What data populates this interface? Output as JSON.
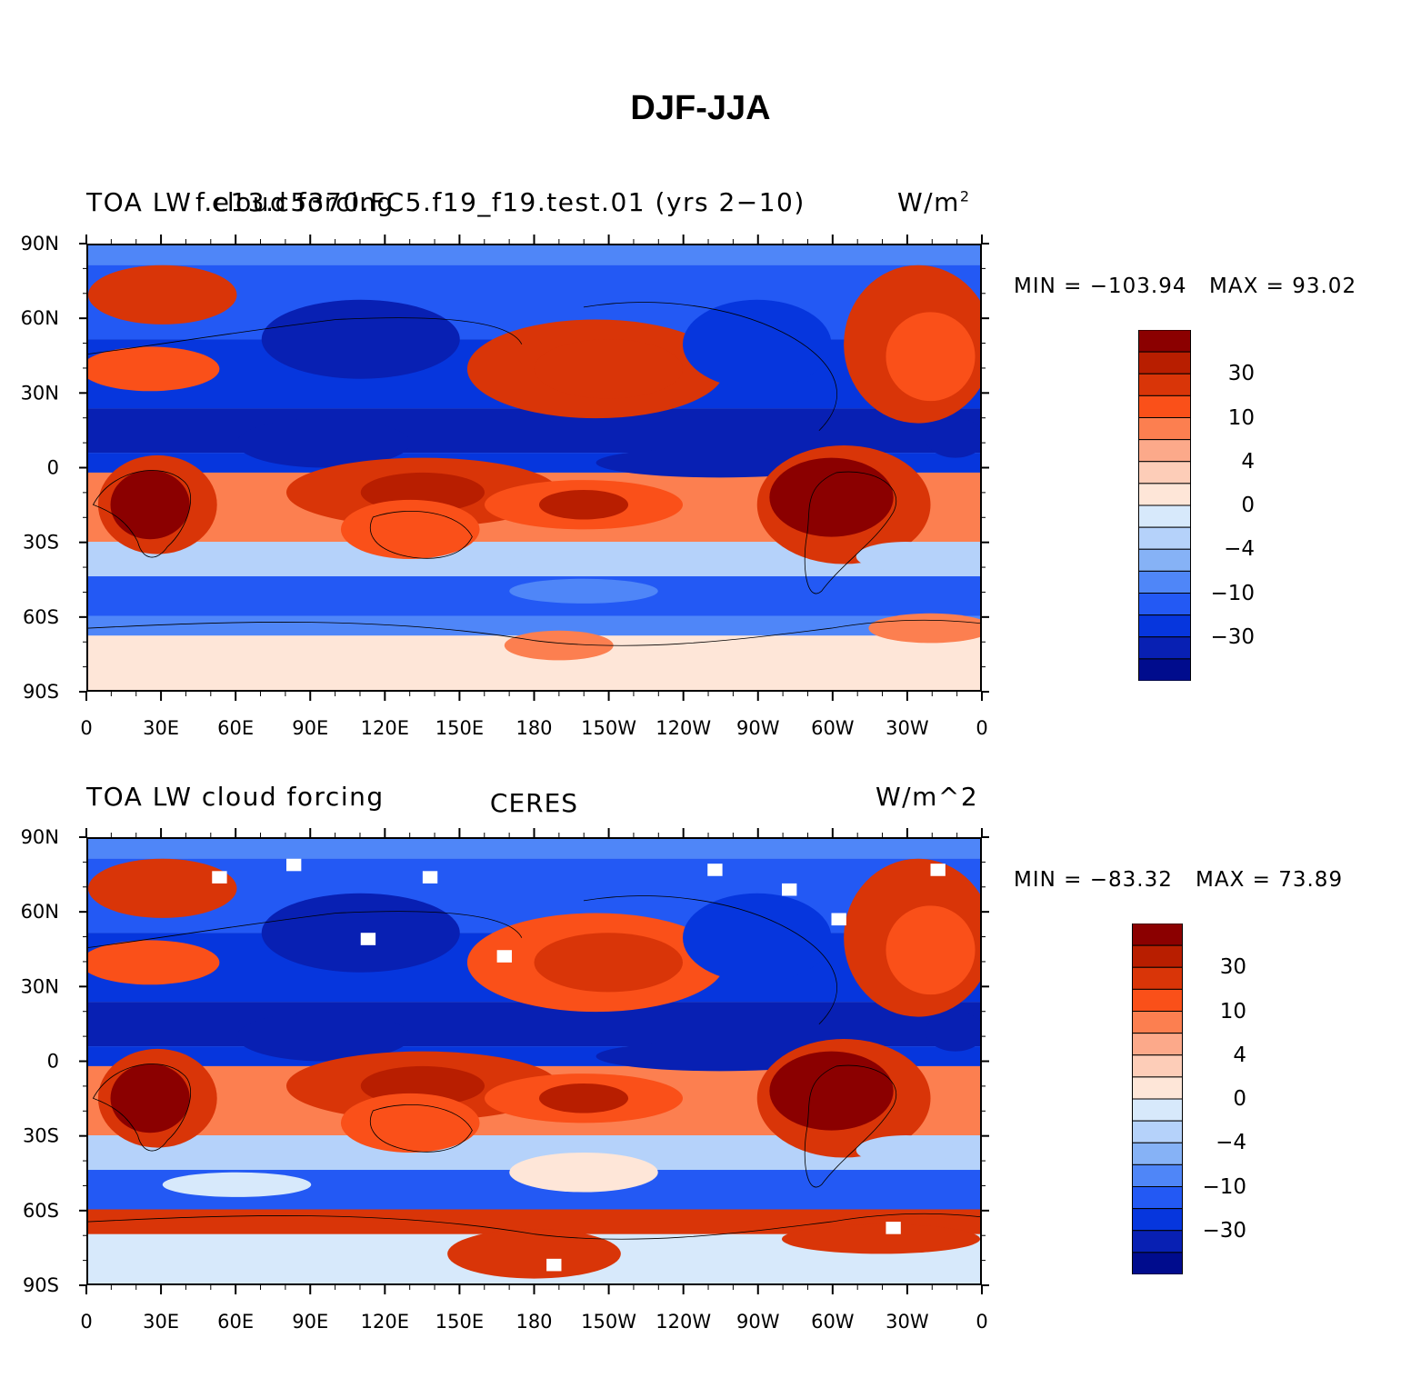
{
  "title": "DJF-JJA",
  "panels": [
    {
      "id": "model",
      "left_title": "TOA LW",
      "left_title_overlap": "cloud forcing",
      "center_title": "f.e13.c5370.FC5.f19_f19.test.01 (yrs 2−10)",
      "right_title": "W/m",
      "right_title_sup": "2",
      "min_label": "MIN = −103.94",
      "max_label": "MAX =   93.02",
      "min": -103.94,
      "max": 93.02
    },
    {
      "id": "ceres",
      "left_title": "TOA LW cloud forcing",
      "center_title": "CERES",
      "right_title": "W/m^2",
      "min_label": "MIN = −83.32",
      "max_label": "MAX =   73.89",
      "min": -83.32,
      "max": 73.89
    }
  ],
  "lat_labels": [
    "90N",
    "60N",
    "30N",
    "0",
    "30S",
    "60S",
    "90S"
  ],
  "lon_labels": [
    "0",
    "30E",
    "60E",
    "90E",
    "120E",
    "150E",
    "180",
    "150W",
    "120W",
    "90W",
    "60W",
    "30W",
    "0"
  ],
  "colorbar": {
    "colors": [
      "#8b0000",
      "#b81e00",
      "#d93508",
      "#fa5019",
      "#fc7f50",
      "#fca98a",
      "#fdcdb8",
      "#fee6d8",
      "#d7e9fb",
      "#b5d2fa",
      "#86b2f6",
      "#4f86f8",
      "#2359f4",
      "#0636dd",
      "#0820b3",
      "#000c8d"
    ],
    "labels": [
      "30",
      "10",
      "4",
      "0",
      "−4",
      "−10",
      "−30"
    ]
  },
  "chart_data": {
    "type": "heatmap",
    "variable": "TOA LW cloud forcing",
    "season_difference": "DJF-JJA",
    "units": "W/m^2",
    "contour_levels": [
      -40,
      -30,
      -20,
      -10,
      -6,
      -4,
      -2,
      0,
      2,
      4,
      6,
      10,
      20,
      30,
      40
    ],
    "colorbar_tick_labels": [
      30,
      10,
      4,
      0,
      -4,
      -10,
      -30
    ],
    "x_axis": {
      "label": "",
      "ticks": [
        "0",
        "30E",
        "60E",
        "90E",
        "120E",
        "150E",
        "180",
        "150W",
        "120W",
        "90W",
        "60W",
        "30W",
        "0"
      ]
    },
    "y_axis": {
      "label": "",
      "ticks": [
        "90N",
        "60N",
        "30N",
        "0",
        "30S",
        "60S",
        "90S"
      ]
    },
    "series": [
      {
        "name": "f.e13.c5370.FC5.f19_f19.test.01 (yrs 2-10)",
        "min": -103.94,
        "max": 93.02
      },
      {
        "name": "CERES",
        "min": -83.32,
        "max": 73.89
      }
    ]
  }
}
